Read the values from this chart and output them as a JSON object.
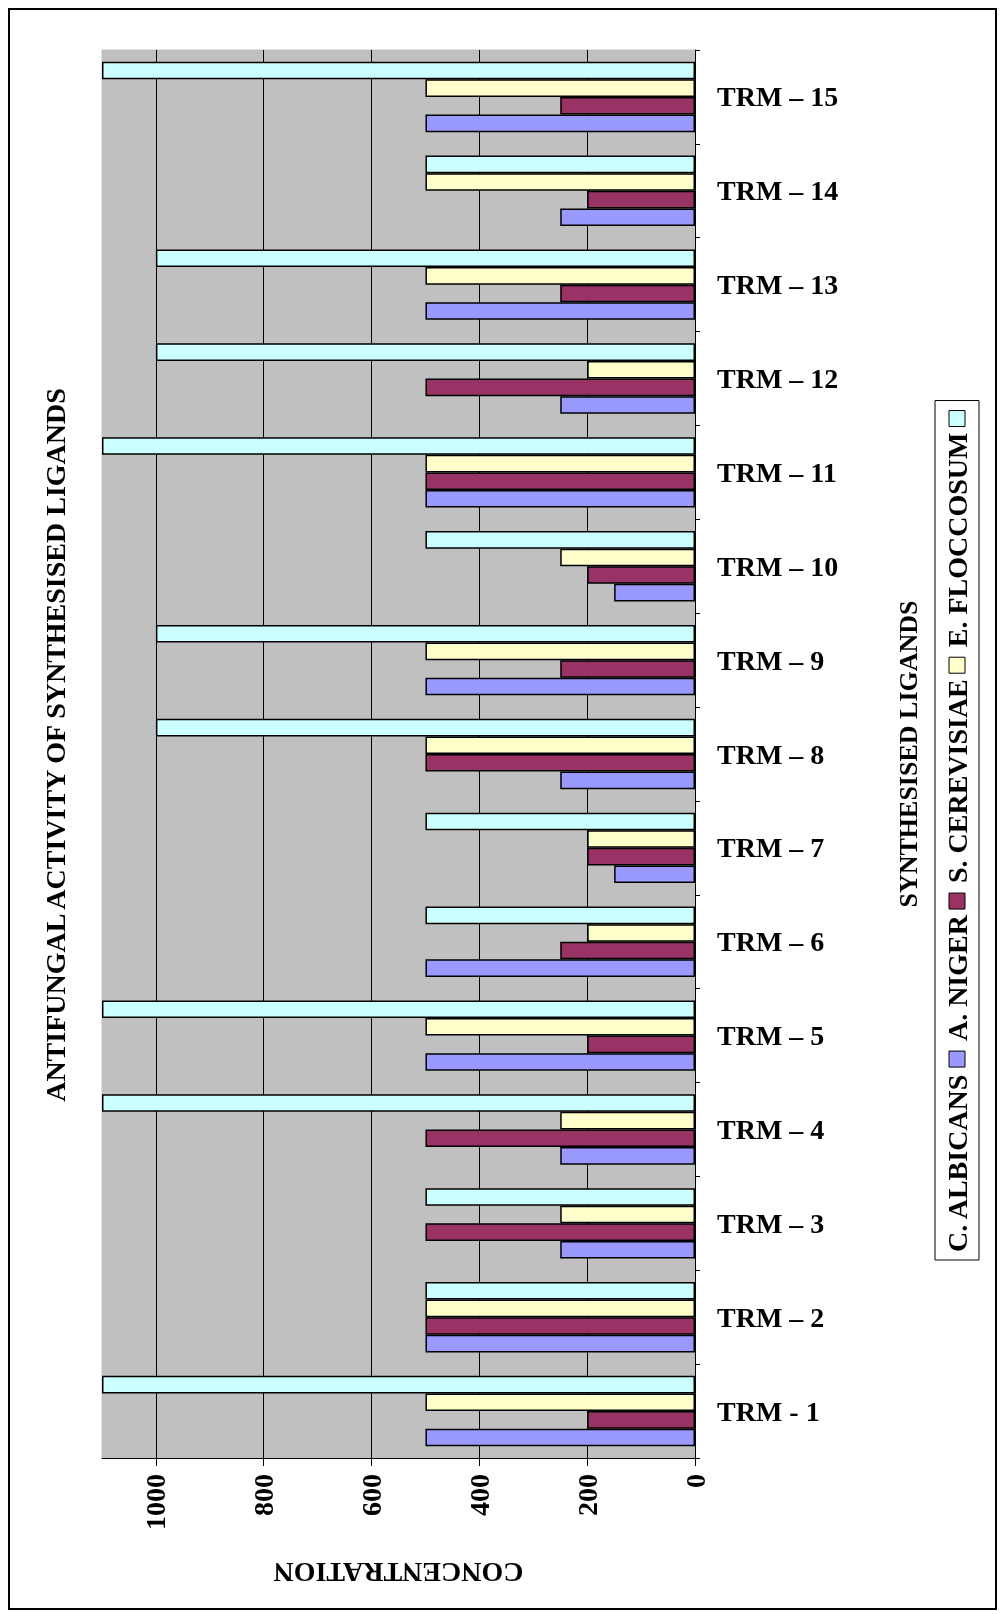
{
  "chart_data": {
    "type": "bar",
    "orientation": "horizontal",
    "title": "ANTIFUNGAL ACTIVITY OF SYNTHESISED LIGANDS",
    "xlabel": "CONCENTRATION",
    "ylabel": "SYNTHESISED LIGANDS",
    "categories": [
      "TRM – 15",
      "TRM – 14",
      "TRM – 13",
      "TRM – 12",
      "TRM – 11",
      "TRM – 10",
      "TRM – 9",
      "TRM – 8",
      "TRM – 7",
      "TRM – 6",
      "TRM – 5",
      "TRM – 4",
      "TRM – 3",
      "TRM – 2",
      "TRM - 1"
    ],
    "series": [
      {
        "name": "C. ALBICANS",
        "color": "#9999ff",
        "values": [
          500,
          250,
          500,
          250,
          500,
          150,
          500,
          250,
          150,
          500,
          500,
          250,
          250,
          500,
          500
        ]
      },
      {
        "name": "A. NIGER",
        "color": "#993366",
        "values": [
          250,
          200,
          250,
          500,
          500,
          200,
          250,
          500,
          200,
          250,
          200,
          500,
          500,
          500,
          200
        ]
      },
      {
        "name": "S. CEREVISIAE",
        "color": "#ffffcc",
        "values": [
          500,
          500,
          500,
          200,
          500,
          250,
          500,
          500,
          200,
          200,
          500,
          250,
          250,
          500,
          500
        ]
      },
      {
        "name": "E. FLOCCOSUM",
        "color": "#ccffff",
        "values": [
          1100,
          500,
          1000,
          1000,
          1100,
          500,
          1000,
          1000,
          500,
          500,
          1100,
          1100,
          500,
          500,
          1100
        ]
      }
    ],
    "xlim": [
      1100,
      0
    ],
    "xticks": [
      1000,
      800,
      600,
      400,
      200,
      0
    ],
    "grid": "x",
    "legend": "right"
  }
}
